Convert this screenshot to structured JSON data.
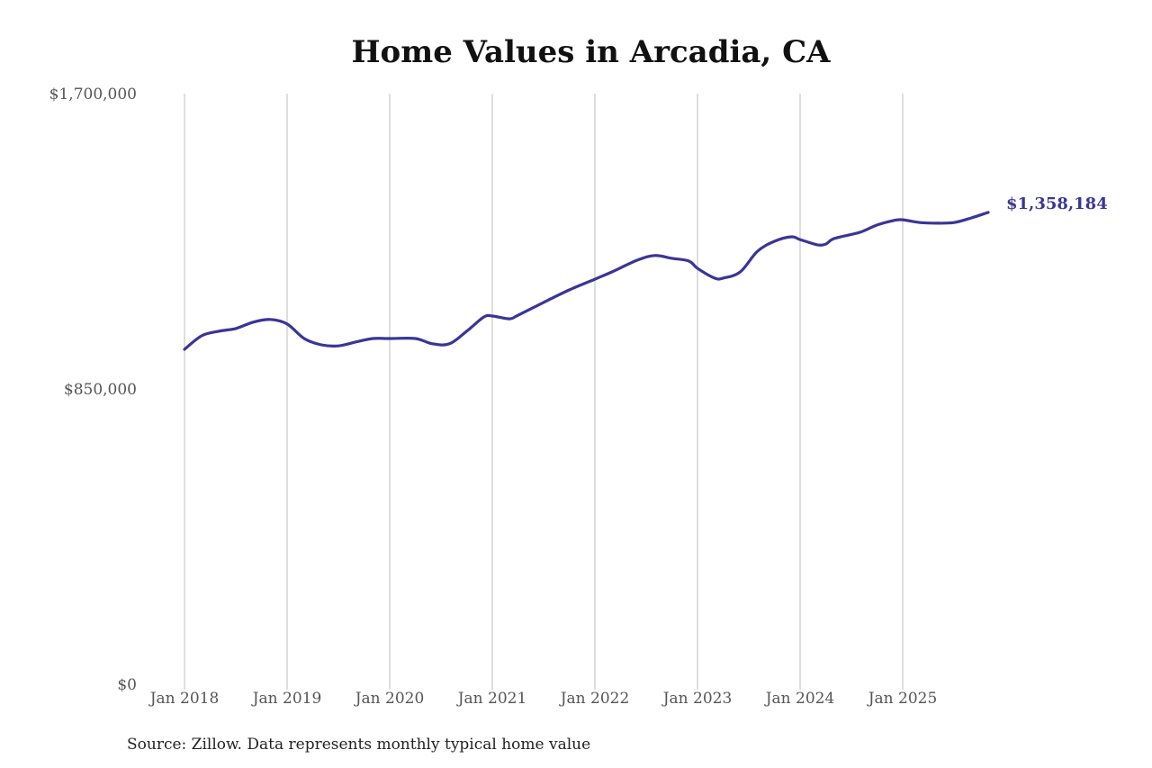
{
  "chart_data": {
    "type": "line",
    "title": "Home Values in Arcadia, CA",
    "xlabel": "",
    "ylabel": "",
    "ylim": [
      0,
      1700000
    ],
    "y_ticks": [
      "$0",
      "$850,000",
      "$1,700,000"
    ],
    "y_tick_values": [
      0,
      850000,
      1700000
    ],
    "x_ticks": [
      "Jan 2018",
      "Jan 2019",
      "Jan 2020",
      "Jan 2021",
      "Jan 2022",
      "Jan 2023",
      "Jan 2024",
      "Jan 2025"
    ],
    "grid": "vertical lines at each January",
    "legend": "none",
    "end_label": "$1,358,184",
    "series": [
      {
        "name": "Typical home value",
        "color": "#3a3596",
        "points": [
          [
            "2018-01",
            964000
          ],
          [
            "2018-03",
            1003000
          ],
          [
            "2018-05",
            1016000
          ],
          [
            "2018-07",
            1024000
          ],
          [
            "2018-09",
            1042000
          ],
          [
            "2018-11",
            1050000
          ],
          [
            "2019-01",
            1037000
          ],
          [
            "2019-03",
            995000
          ],
          [
            "2019-05",
            977000
          ],
          [
            "2019-07",
            974000
          ],
          [
            "2019-09",
            985000
          ],
          [
            "2019-11",
            995000
          ],
          [
            "2020-01",
            995000
          ],
          [
            "2020-04",
            995000
          ],
          [
            "2020-06",
            980000
          ],
          [
            "2020-08",
            980000
          ],
          [
            "2020-10",
            1016000
          ],
          [
            "2020-12",
            1057000
          ],
          [
            "2021-01",
            1060000
          ],
          [
            "2021-03",
            1052000
          ],
          [
            "2021-04",
            1062000
          ],
          [
            "2021-07",
            1099000
          ],
          [
            "2021-10",
            1135000
          ],
          [
            "2022-01",
            1166000
          ],
          [
            "2022-03",
            1187000
          ],
          [
            "2022-06",
            1221000
          ],
          [
            "2022-08",
            1234000
          ],
          [
            "2022-10",
            1226000
          ],
          [
            "2022-12",
            1218000
          ],
          [
            "2023-01",
            1197000
          ],
          [
            "2023-03",
            1169000
          ],
          [
            "2023-04",
            1169000
          ],
          [
            "2023-06",
            1187000
          ],
          [
            "2023-08",
            1246000
          ],
          [
            "2023-10",
            1275000
          ],
          [
            "2023-12",
            1288000
          ],
          [
            "2024-01",
            1280000
          ],
          [
            "2024-03",
            1265000
          ],
          [
            "2024-04",
            1267000
          ],
          [
            "2024-05",
            1283000
          ],
          [
            "2024-08",
            1301000
          ],
          [
            "2024-10",
            1322000
          ],
          [
            "2024-12",
            1335000
          ],
          [
            "2025-01",
            1337000
          ],
          [
            "2025-03",
            1329000
          ],
          [
            "2025-05",
            1327000
          ],
          [
            "2025-07",
            1329000
          ],
          [
            "2025-09",
            1342000
          ],
          [
            "2025-11",
            1358184
          ]
        ]
      }
    ]
  },
  "footer": {
    "source": "Source: Zillow. Data represents monthly typical home value"
  }
}
